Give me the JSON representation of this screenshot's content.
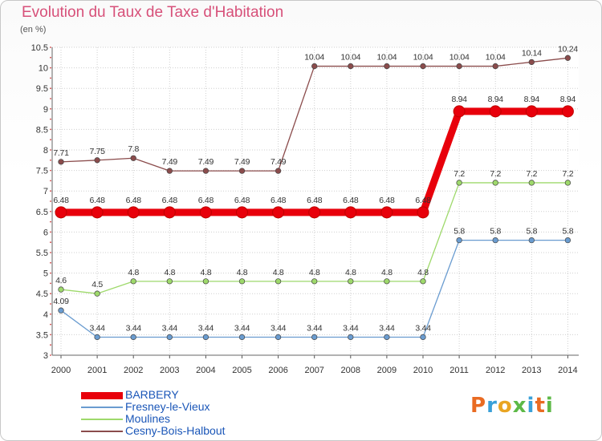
{
  "title": "Evolution du Taux de Taxe d'Habitation",
  "unit_label": "(en %)",
  "logo": {
    "letters": [
      "P",
      "r",
      "o",
      "x",
      "i",
      "t",
      "i"
    ],
    "colors": [
      "#e96b22",
      "#3aa0d8",
      "#e9a522",
      "#5db947",
      "#3aa0d8",
      "#e96b22",
      "#5db947"
    ]
  },
  "chart_data": {
    "type": "line",
    "title": "Evolution du Taux de Taxe d'Habitation",
    "ylabel": "(en %)",
    "xlabel": "",
    "x": [
      "2000",
      "2001",
      "2002",
      "2003",
      "2004",
      "2005",
      "2006",
      "2007",
      "2008",
      "2009",
      "2010",
      "2011",
      "2012",
      "2013",
      "2014"
    ],
    "ylim": [
      3,
      10.5
    ],
    "yticks": [
      "3",
      "3.5",
      "4",
      "4.5",
      "5",
      "5.5",
      "6",
      "6.5",
      "7",
      "7.5",
      "8",
      "8.5",
      "9",
      "9.5",
      "10",
      "10.5"
    ],
    "grid": true,
    "legend_position": "bottom-left",
    "series": [
      {
        "name": "BARBERY",
        "color": "#e8000b",
        "values": [
          6.48,
          6.48,
          6.48,
          6.48,
          6.48,
          6.48,
          6.48,
          6.48,
          6.48,
          6.48,
          6.48,
          8.94,
          8.94,
          8.94,
          8.94
        ],
        "labels": [
          "6.48",
          "6.48",
          "6.48",
          "6.48",
          "6.48",
          "6.48",
          "6.48",
          "6.48",
          "6.48",
          "6.48",
          "6.48",
          "8.94",
          "8.94",
          "8.94",
          "8.94"
        ]
      },
      {
        "name": "Fresney-le-Vieux",
        "color": "#6a9cd0",
        "values": [
          4.09,
          3.44,
          3.44,
          3.44,
          3.44,
          3.44,
          3.44,
          3.44,
          3.44,
          3.44,
          3.44,
          5.8,
          5.8,
          5.8,
          5.8
        ],
        "labels": [
          "4.09",
          "3.44",
          "3.44",
          "3.44",
          "3.44",
          "3.44",
          "3.44",
          "3.44",
          "3.44",
          "3.44",
          "3.44",
          "5.8",
          "5.8",
          "5.8",
          "5.8"
        ]
      },
      {
        "name": "Moulines",
        "color": "#9ed96b",
        "values": [
          4.6,
          4.5,
          4.8,
          4.8,
          4.8,
          4.8,
          4.8,
          4.8,
          4.8,
          4.8,
          4.8,
          7.2,
          7.2,
          7.2,
          7.2
        ],
        "labels": [
          "4.6",
          "4.5",
          "4.8",
          "4.8",
          "4.8",
          "4.8",
          "4.8",
          "4.8",
          "4.8",
          "4.8",
          "4.8",
          "7.2",
          "7.2",
          "7.2",
          "7.2"
        ]
      },
      {
        "name": "Cesny-Bois-Halbout",
        "color": "#8b4c4c",
        "values": [
          7.71,
          7.75,
          7.8,
          7.49,
          7.49,
          7.49,
          7.49,
          10.04,
          10.04,
          10.04,
          10.04,
          10.04,
          10.04,
          10.14,
          10.24
        ],
        "labels": [
          "7.71",
          "7.75",
          "7.8",
          "7.49",
          "7.49",
          "7.49",
          "7.49",
          "10.04",
          "10.04",
          "10.04",
          "10.04",
          "10.04",
          "10.04",
          "10.14",
          "10.24"
        ]
      }
    ]
  }
}
